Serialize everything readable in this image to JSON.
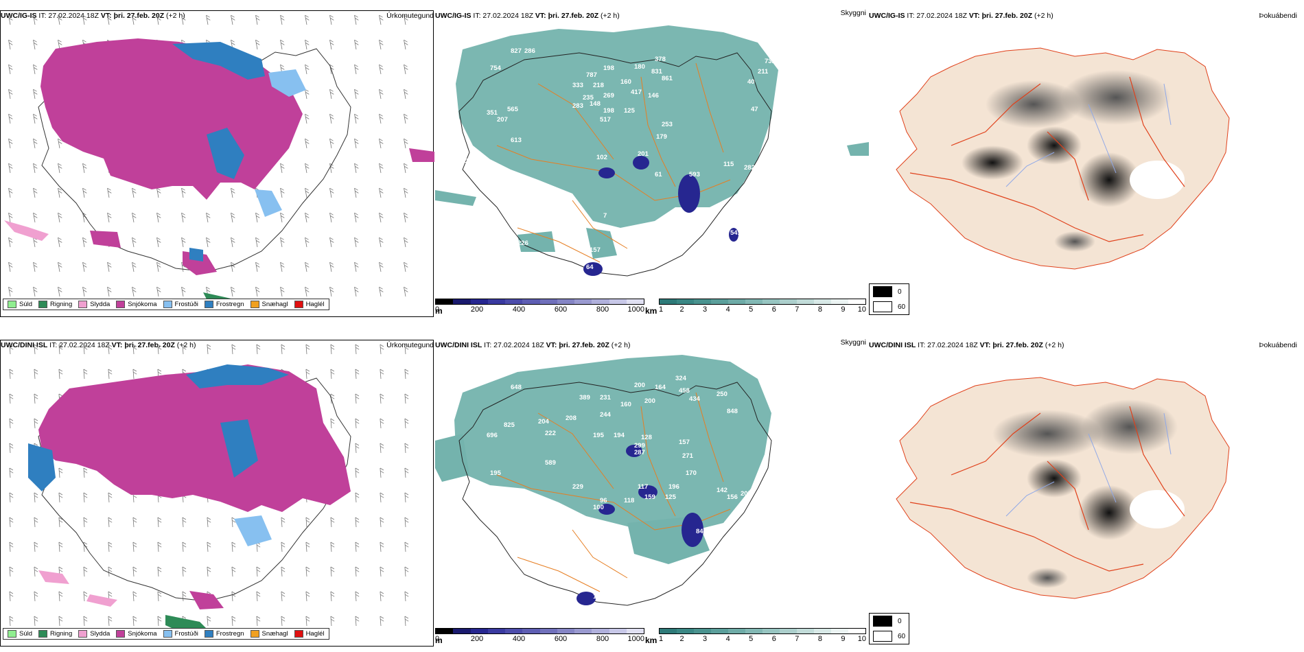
{
  "rows": [
    {
      "model": "UWC/IG-IS",
      "it_label": "IT: 27.02.2024 18Z",
      "vt_bold": "VT: þri. 27.feb. 20Z",
      "vt_offset": "(+2 h)",
      "vis_peaks": [
        "827",
        "286",
        "754",
        "787",
        "198",
        "180",
        "378",
        "831",
        "861",
        "333",
        "218",
        "160",
        "351",
        "565",
        "235",
        "269",
        "417",
        "146",
        "207",
        "283",
        "148",
        "198",
        "125",
        "613",
        "517",
        "253",
        "179",
        "100",
        "201",
        "102",
        "137",
        "61",
        "593",
        "56",
        "115",
        "282",
        "47",
        "40",
        "211",
        "732",
        "7",
        "226",
        "157",
        "50",
        "64",
        "541"
      ]
    },
    {
      "model": "UWC/DINI ISL",
      "it_label": "IT: 27.02.2024 18Z",
      "vt_bold": "VT: þri. 27.feb. 20Z",
      "vt_offset": "(+2 h)",
      "vis_peaks": [
        "648",
        "389",
        "231",
        "200",
        "164",
        "324",
        "458",
        "434",
        "250",
        "848",
        "825",
        "204",
        "208",
        "244",
        "160",
        "200",
        "696",
        "222",
        "195",
        "194",
        "128",
        "299",
        "157",
        "287",
        "271",
        "589",
        "170",
        "195",
        "229",
        "117",
        "196",
        "142",
        "96",
        "100",
        "118",
        "159",
        "125",
        "156",
        "207",
        "103",
        "831",
        "84",
        "46",
        "151",
        "83",
        "57"
      ]
    }
  ],
  "panel_titles": {
    "precip": "Úrkomutegund",
    "vis": "Skyggni",
    "cloud": "Þokuábendi"
  },
  "precip_legend": [
    {
      "label": "Súld",
      "color": "#90ee90"
    },
    {
      "label": "Rigning",
      "color": "#2e8b57"
    },
    {
      "label": "Slydda",
      "color": "#f0a0d0"
    },
    {
      "label": "Snjókoma",
      "color": "#c0409a"
    },
    {
      "label": "Frostúði",
      "color": "#87c0f0"
    },
    {
      "label": "Frostregn",
      "color": "#2f7fc0"
    },
    {
      "label": "Snæhagl",
      "color": "#f0a020"
    },
    {
      "label": "Haglél",
      "color": "#e01010"
    }
  ],
  "vis_scale_m": {
    "unit": "m",
    "ticks": [
      "0",
      "200",
      "400",
      "600",
      "800",
      "1000"
    ],
    "colors": [
      "#000000",
      "#1a1a6e",
      "#262690",
      "#3a3aa0",
      "#4d4dab",
      "#5e5eb3",
      "#7070bb",
      "#8585c5",
      "#9a9ad0",
      "#b0b0dc",
      "#c8c8e8",
      "#e0e0f2"
    ]
  },
  "vis_scale_km": {
    "unit": "km",
    "ticks": [
      "1",
      "2",
      "3",
      "4",
      "5",
      "6",
      "7",
      "8",
      "9",
      "10"
    ],
    "colors": [
      "#2e7a78",
      "#3a8784",
      "#4a938f",
      "#5b9f9b",
      "#6eaba7",
      "#82b8b4",
      "#97c5c1",
      "#accfcc",
      "#c2dcd9",
      "#d8e9e7",
      "#ecf4f3",
      "#ffffff"
    ]
  },
  "cloud_legend": [
    {
      "label": "0",
      "color": "#000000"
    },
    {
      "label": "60",
      "color": "#ffffff"
    }
  ],
  "colors": {
    "snow": "#c0409a",
    "freezing_rain": "#2f7fc0",
    "freezing_drizzle": "#87c0f0",
    "sleet": "#f0a0d0",
    "rain": "#2e8b57",
    "vis_fill": "#74b3ad",
    "land_beige": "#f4e4d4",
    "road_orange": "#e67e22",
    "road_red": "#e0401a",
    "river_blue": "#8fa8e8"
  }
}
